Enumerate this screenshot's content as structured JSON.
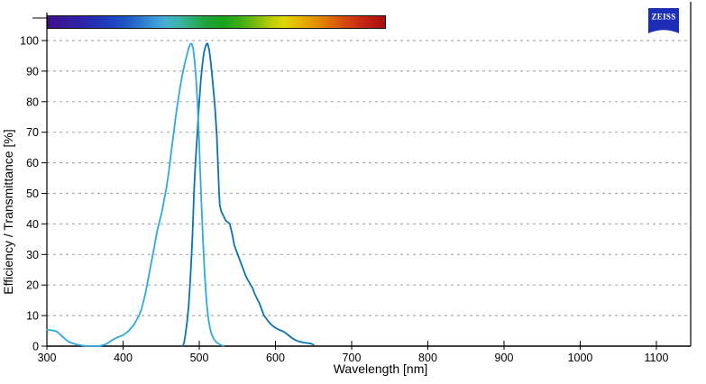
{
  "header": {
    "spectrum_bar": {
      "name": "visible-light-spectrum",
      "gradient_stops": [
        [
          "#3D1093",
          0
        ],
        [
          "#3A1797",
          4
        ],
        [
          "#2F21A5",
          9
        ],
        [
          "#2430B4",
          14
        ],
        [
          "#1E3FBE",
          18
        ],
        [
          "#1E55C6",
          23
        ],
        [
          "#2D7BD0",
          28
        ],
        [
          "#3E9BD8",
          32
        ],
        [
          "#47AFD0",
          35
        ],
        [
          "#3DB4A8",
          39
        ],
        [
          "#2EAC6E",
          43
        ],
        [
          "#21A338",
          47
        ],
        [
          "#17A31C",
          52
        ],
        [
          "#3FAD14",
          57
        ],
        [
          "#7CBC0E",
          62
        ],
        [
          "#B9CC06",
          66
        ],
        [
          "#DCD800",
          70
        ],
        [
          "#E6C000",
          73
        ],
        [
          "#E6A300",
          77
        ],
        [
          "#E28500",
          81
        ],
        [
          "#DB6208",
          85
        ],
        [
          "#D24310",
          89
        ],
        [
          "#C62A12",
          93
        ],
        [
          "#B61812",
          97
        ],
        [
          "#A31111",
          100
        ]
      ]
    },
    "logo": {
      "text": "ZEISS",
      "color": "#1C2EB8"
    }
  },
  "colors": {
    "grid": "#ABABAB",
    "axis": "#000000",
    "background": "#FFFFFF"
  },
  "chart_data": {
    "type": "line",
    "title": "",
    "xlabel": "Wavelength [nm]",
    "ylabel": "Efficiency / Transmittance [%]",
    "xlim": [
      300,
      1145
    ],
    "ylim": [
      0,
      100
    ],
    "x_ticks": [
      300,
      400,
      500,
      600,
      700,
      800,
      900,
      1000,
      1100
    ],
    "y_ticks": [
      0,
      10,
      20,
      30,
      40,
      50,
      60,
      70,
      80,
      90,
      100
    ],
    "grid": "horizontal-dashed",
    "legend": "none",
    "series": [
      {
        "name": "excitation-spectrum",
        "color": "#30A9E0",
        "points": [
          [
            300,
            5.3
          ],
          [
            304,
            5.3
          ],
          [
            308,
            5.1
          ],
          [
            312,
            4.9
          ],
          [
            315,
            4.4
          ],
          [
            318,
            3.7
          ],
          [
            321,
            3.0
          ],
          [
            324,
            2.3
          ],
          [
            327,
            1.7
          ],
          [
            330,
            1.3
          ],
          [
            334,
            0.9
          ],
          [
            338,
            0.6
          ],
          [
            342,
            0.4
          ],
          [
            346,
            0.2
          ],
          [
            350,
            0.1
          ],
          [
            355,
            0
          ],
          [
            368,
            0
          ],
          [
            372,
            0.2
          ],
          [
            376,
            0.5
          ],
          [
            380,
            1.0
          ],
          [
            384,
            1.7
          ],
          [
            388,
            2.3
          ],
          [
            392,
            2.8
          ],
          [
            396,
            3.2
          ],
          [
            400,
            3.6
          ],
          [
            404,
            4.3
          ],
          [
            408,
            5.2
          ],
          [
            412,
            6.3
          ],
          [
            415,
            7.3
          ],
          [
            418,
            8.7
          ],
          [
            421,
            10
          ],
          [
            424,
            12
          ],
          [
            427,
            14.8
          ],
          [
            430,
            18
          ],
          [
            433,
            22
          ],
          [
            436,
            26
          ],
          [
            439,
            30
          ],
          [
            442,
            34
          ],
          [
            445,
            38
          ],
          [
            448,
            41
          ],
          [
            451,
            44
          ],
          [
            454,
            48
          ],
          [
            457,
            52
          ],
          [
            460,
            57
          ],
          [
            463,
            63
          ],
          [
            466,
            69
          ],
          [
            469,
            75
          ],
          [
            472,
            80
          ],
          [
            475,
            85
          ],
          [
            478,
            89
          ],
          [
            481,
            92.5
          ],
          [
            484,
            95.5
          ],
          [
            486,
            97.5
          ],
          [
            488,
            98.8
          ],
          [
            490,
            99
          ],
          [
            492,
            97.5
          ],
          [
            494,
            93
          ],
          [
            496,
            87
          ],
          [
            498,
            78
          ],
          [
            500,
            66
          ],
          [
            501,
            59
          ],
          [
            502,
            52
          ],
          [
            503,
            46
          ],
          [
            504,
            40
          ],
          [
            505,
            34
          ],
          [
            506,
            29
          ],
          [
            507,
            24
          ],
          [
            508,
            20
          ],
          [
            509,
            16.5
          ],
          [
            510,
            13.5
          ],
          [
            511,
            11
          ],
          [
            512,
            9
          ],
          [
            513,
            7.4
          ],
          [
            514,
            6
          ],
          [
            515,
            5
          ],
          [
            516,
            4.1
          ],
          [
            517,
            3.4
          ],
          [
            518,
            2.8
          ],
          [
            520,
            2.0
          ],
          [
            522,
            1.4
          ],
          [
            524,
            1.0
          ],
          [
            526,
            0.7
          ],
          [
            528,
            0.4
          ],
          [
            530,
            0.2
          ],
          [
            532,
            0.1
          ]
        ]
      },
      {
        "name": "emission-spectrum",
        "color": "#0B74AE",
        "points": [
          [
            478,
            0
          ],
          [
            480,
            1
          ],
          [
            482,
            4
          ],
          [
            484,
            8
          ],
          [
            486,
            13
          ],
          [
            488,
            21
          ],
          [
            490,
            30
          ],
          [
            491,
            36
          ],
          [
            492,
            42
          ],
          [
            493,
            50
          ],
          [
            494,
            55
          ],
          [
            495,
            60
          ],
          [
            496,
            64
          ],
          [
            497,
            68
          ],
          [
            498,
            72
          ],
          [
            499,
            76
          ],
          [
            500,
            80
          ],
          [
            502,
            87
          ],
          [
            504,
            92
          ],
          [
            506,
            96
          ],
          [
            508,
            98
          ],
          [
            510,
            99
          ],
          [
            511,
            99
          ],
          [
            513,
            97
          ],
          [
            515,
            93
          ],
          [
            517,
            88
          ],
          [
            519,
            83
          ],
          [
            521,
            77
          ],
          [
            523,
            69
          ],
          [
            525,
            57
          ],
          [
            526,
            50
          ],
          [
            527,
            46
          ],
          [
            529,
            44
          ],
          [
            531,
            43
          ],
          [
            533,
            42
          ],
          [
            535,
            41
          ],
          [
            538,
            40.5
          ],
          [
            540,
            40
          ],
          [
            543,
            37
          ],
          [
            546,
            33
          ],
          [
            549,
            31
          ],
          [
            552,
            29
          ],
          [
            555,
            27
          ],
          [
            558,
            25
          ],
          [
            561,
            23
          ],
          [
            564,
            21.5
          ],
          [
            567,
            20.3
          ],
          [
            570,
            19
          ],
          [
            573,
            17
          ],
          [
            576,
            15.5
          ],
          [
            579,
            14
          ],
          [
            582,
            12
          ],
          [
            585,
            10
          ],
          [
            588,
            9
          ],
          [
            591,
            8
          ],
          [
            594,
            7.2
          ],
          [
            597,
            6.5
          ],
          [
            600,
            6
          ],
          [
            603,
            5.6
          ],
          [
            606,
            5.2
          ],
          [
            609,
            5
          ],
          [
            612,
            4.5
          ],
          [
            615,
            4
          ],
          [
            618,
            3.4
          ],
          [
            621,
            2.8
          ],
          [
            624,
            2.3
          ],
          [
            627,
            1.9
          ],
          [
            630,
            1.6
          ],
          [
            633,
            1.4
          ],
          [
            636,
            1.2
          ],
          [
            639,
            1.1
          ],
          [
            642,
            1.0
          ],
          [
            645,
            0.9
          ],
          [
            648,
            0.7
          ],
          [
            650,
            0.5
          ]
        ]
      }
    ]
  }
}
